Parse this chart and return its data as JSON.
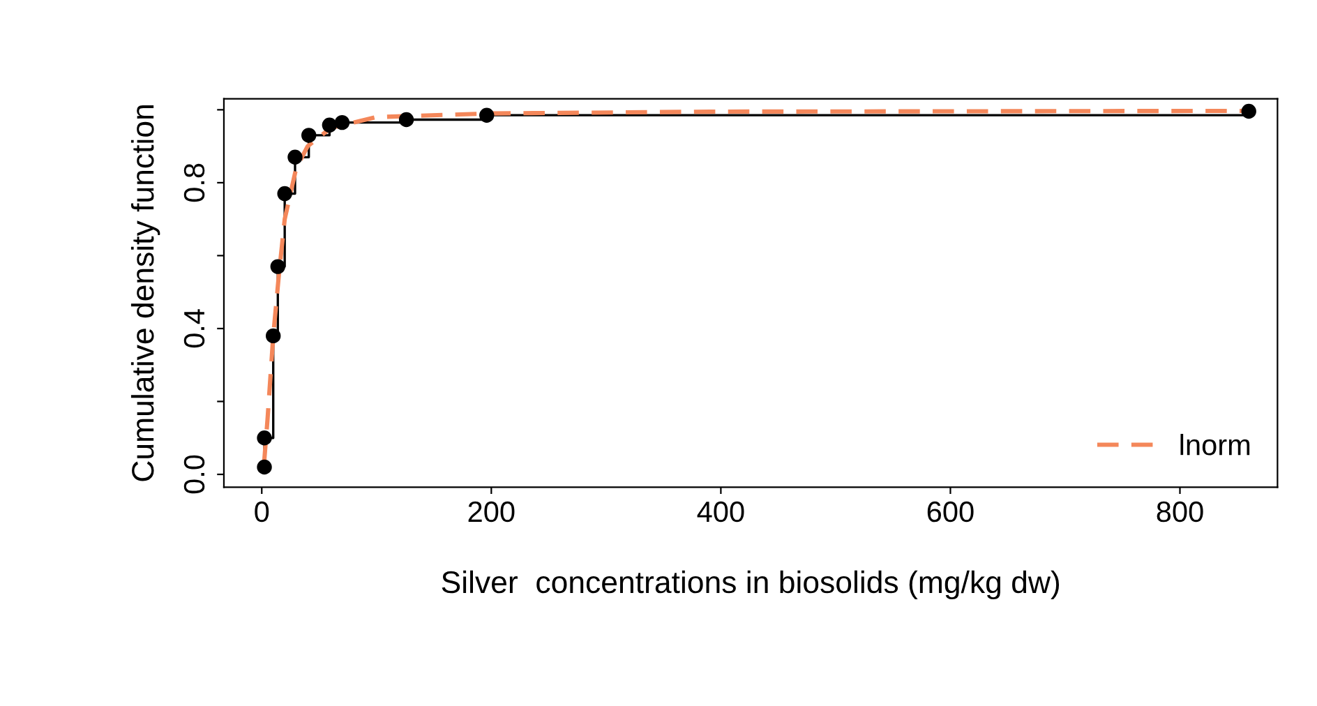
{
  "chart_data": {
    "type": "line",
    "xlabel": "Silver  concentrations in biosolids (mg/kg dw)",
    "ylabel": "Cumulative density function",
    "xlim": [
      -33,
      885
    ],
    "ylim": [
      -0.035,
      1.03
    ],
    "xticks": [
      0,
      200,
      400,
      600,
      800
    ],
    "yticks": [
      {
        "value": 0.0,
        "label": "0.0"
      },
      {
        "value": 0.2,
        "label": null
      },
      0.4,
      {
        "value": 0.6,
        "label": null
      },
      0.8,
      {
        "value": 1.0,
        "label": null
      }
    ],
    "grid": false,
    "legend": "bottom right",
    "series": [
      {
        "type": "step",
        "color": "#000000",
        "marker": "circle",
        "line_style": "solid",
        "x": [
          2.3,
          2.3,
          10,
          14,
          20,
          29,
          41,
          59,
          70,
          126,
          196,
          860
        ],
        "values": [
          0.02,
          0.1,
          0.38,
          0.57,
          0.77,
          0.87,
          0.93,
          0.958,
          0.965,
          0.973,
          0.985,
          0.996
        ]
      },
      {
        "name": "lnorm",
        "color": "#f4875a",
        "marker": "none",
        "line_style": "dashed",
        "x": [
          2,
          5,
          10,
          15,
          20,
          30,
          40,
          60,
          100,
          200,
          400,
          860
        ],
        "values": [
          0.03,
          0.15,
          0.38,
          0.55,
          0.7,
          0.84,
          0.9,
          0.95,
          0.98,
          0.99,
          0.995,
          0.997
        ]
      }
    ]
  }
}
